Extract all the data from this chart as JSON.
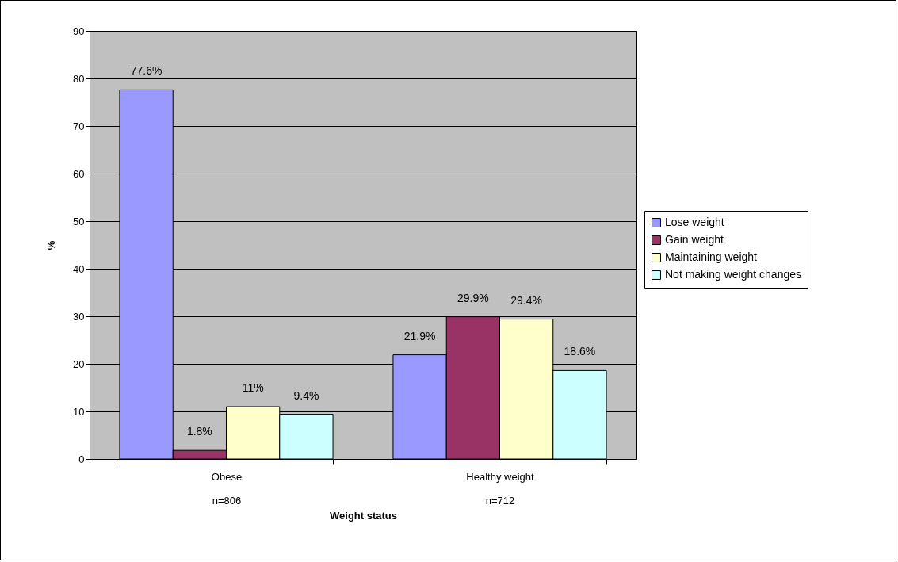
{
  "chart_data": {
    "type": "bar",
    "xlabel": "Weight status",
    "ylabel": "%",
    "categories": [
      "Obese\nn=806",
      "Healthy weight\nn=712"
    ],
    "series": [
      {
        "name": "Lose weight",
        "color": "#9999ff",
        "values": [
          77.6,
          21.9
        ],
        "value_labels": [
          "77.6%",
          "21.9%"
        ]
      },
      {
        "name": "Gain weight",
        "color": "#993366",
        "values": [
          1.8,
          29.9
        ],
        "value_labels": [
          "1.8%",
          "29.9%"
        ]
      },
      {
        "name": "Maintaining weight",
        "color": "#ffffcc",
        "values": [
          11,
          29.4
        ],
        "value_labels": [
          "11%",
          "29.4%"
        ]
      },
      {
        "name": "Not making weight changes",
        "color": "#ccffff",
        "values": [
          9.4,
          18.6
        ],
        "value_labels": [
          "9.4%",
          "18.6%"
        ]
      }
    ],
    "ylim": [
      0,
      90
    ],
    "yticks": [
      0,
      10,
      20,
      30,
      40,
      50,
      60,
      70,
      80,
      90
    ],
    "grid": "y",
    "legend": "right"
  }
}
